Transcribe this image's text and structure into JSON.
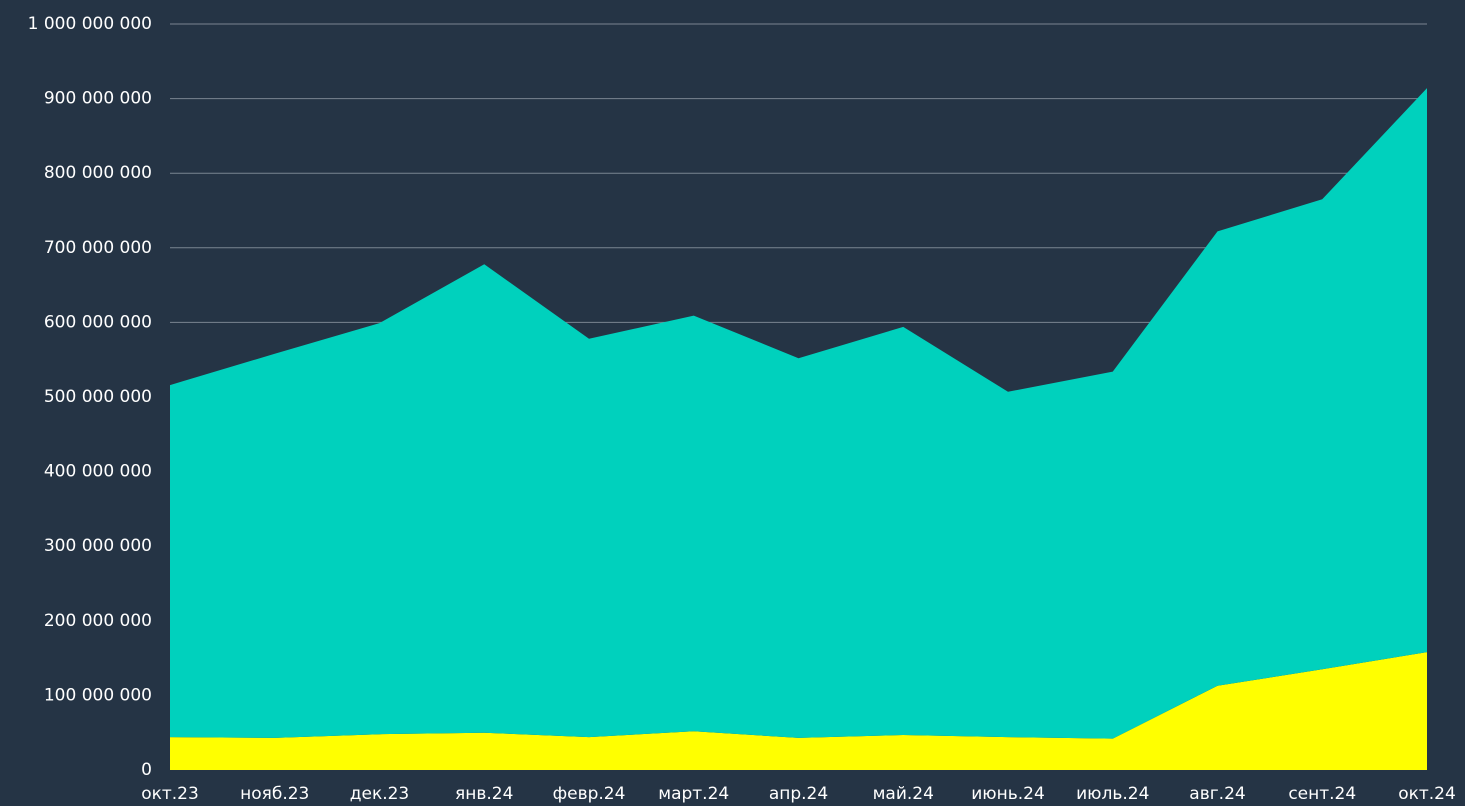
{
  "chart_data": {
    "type": "area",
    "stacked": true,
    "categories": [
      "окт.23",
      "нояб.23",
      "дек.23",
      "янв.24",
      "февр.24",
      "март.24",
      "апр.24",
      "май.24",
      "июнь.24",
      "июль.24",
      "авг.24",
      "сент.24",
      "окт.24"
    ],
    "series": [
      {
        "color": "#ffff00",
        "values": [
          44000000,
          43000000,
          48000000,
          50000000,
          44000000,
          52000000,
          43000000,
          47000000,
          44000000,
          42000000,
          113000000,
          135000000,
          158000000
        ]
      },
      {
        "color": "#00d1bd",
        "values": [
          472000000,
          515000000,
          551000000,
          628000000,
          534000000,
          557000000,
          509000000,
          547000000,
          463000000,
          492000000,
          609000000,
          630000000,
          756000000
        ]
      }
    ],
    "ylim": [
      0,
      1000000000
    ],
    "yticks": [
      0,
      {
        "value": 100000000,
        "label": "100 000 000"
      },
      {
        "value": 200000000,
        "label": "200 000 000"
      },
      {
        "value": 300000000,
        "label": "300 000 000"
      },
      {
        "value": 400000000,
        "label": "400 000 000"
      },
      {
        "value": 500000000,
        "label": "500 000 000"
      },
      {
        "value": 600000000,
        "label": "600 000 000"
      },
      {
        "value": 700000000,
        "label": "700 000 000"
      },
      {
        "value": 800000000,
        "label": "800 000 000"
      },
      {
        "value": 900000000,
        "label": "900 000 000"
      },
      {
        "value": 1000000000,
        "label": "1 000 000 000"
      }
    ],
    "grid": true
  }
}
